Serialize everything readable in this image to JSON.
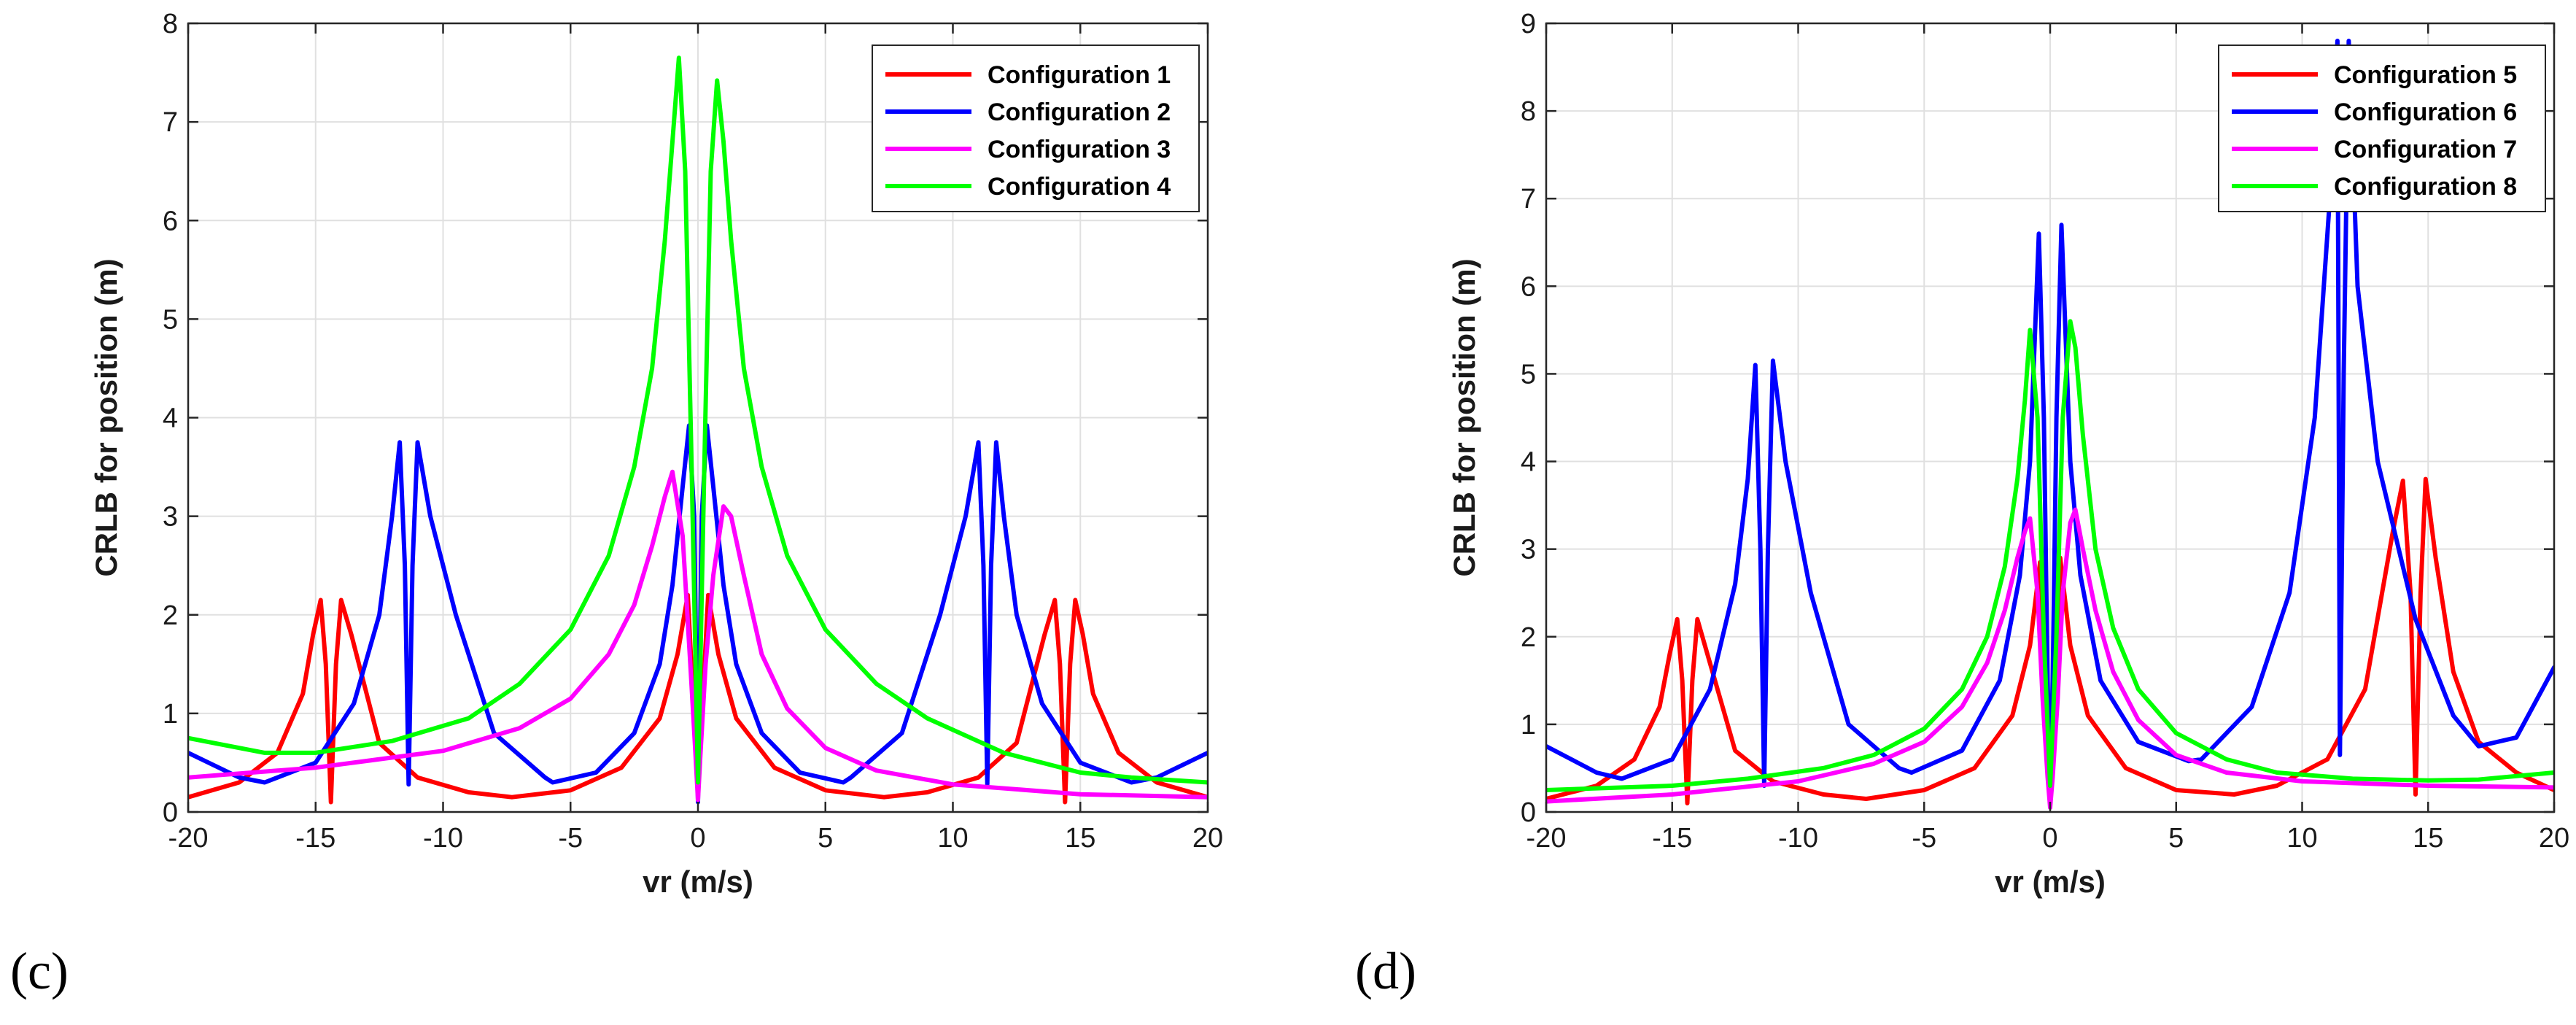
{
  "chart_data": [
    {
      "type": "line",
      "panel_label": "(c)",
      "xlabel": "vr (m/s)",
      "ylabel": "CRLB for position (m)",
      "xlim": [
        -20,
        20
      ],
      "ylim": [
        0,
        8
      ],
      "xticks": [
        -20,
        -15,
        -10,
        -5,
        0,
        5,
        10,
        15,
        20
      ],
      "yticks": [
        0,
        1,
        2,
        3,
        4,
        5,
        6,
        7,
        8
      ],
      "grid": true,
      "legend_position": "top-right",
      "series": [
        {
          "name": "Configuration 1",
          "color": "#ff0000",
          "x": [
            -20,
            -18,
            -16.5,
            -15.5,
            -15.1,
            -14.8,
            -14.6,
            -14.4,
            -14.2,
            -14.0,
            -13.6,
            -12.5,
            -11,
            -9,
            -7.3,
            -5,
            -3,
            -1.5,
            -0.8,
            -0.4,
            -0.2,
            0,
            0.2,
            0.4,
            0.8,
            1.5,
            3,
            5,
            7.3,
            9,
            11,
            12.5,
            13.6,
            14.0,
            14.2,
            14.4,
            14.6,
            14.8,
            15.1,
            15.5,
            16.5,
            18,
            20
          ],
          "values": [
            0.15,
            0.3,
            0.6,
            1.2,
            1.8,
            2.15,
            1.5,
            0.1,
            1.5,
            2.15,
            1.8,
            0.7,
            0.35,
            0.2,
            0.15,
            0.22,
            0.45,
            0.95,
            1.6,
            2.2,
            1.2,
            0.2,
            1.2,
            2.2,
            1.6,
            0.95,
            0.45,
            0.22,
            0.15,
            0.2,
            0.35,
            0.7,
            1.8,
            2.15,
            1.5,
            0.1,
            1.5,
            2.15,
            1.8,
            1.2,
            0.6,
            0.3,
            0.15
          ]
        },
        {
          "name": "Configuration 2",
          "color": "#0000ff",
          "x": [
            -20,
            -18,
            -17,
            -15,
            -13.5,
            -12.5,
            -12,
            -11.7,
            -11.5,
            -11.35,
            -11.2,
            -11.0,
            -10.5,
            -9.5,
            -8,
            -6,
            -5.7,
            -4,
            -2.5,
            -1.5,
            -1,
            -0.6,
            -0.35,
            -0.15,
            0,
            0.15,
            0.35,
            0.6,
            1,
            1.5,
            2.5,
            4,
            5.7,
            6,
            8,
            9.5,
            10.5,
            11.0,
            11.2,
            11.35,
            11.5,
            11.7,
            12,
            12.5,
            13.5,
            15,
            17,
            18,
            20
          ],
          "values": [
            0.6,
            0.35,
            0.3,
            0.5,
            1.1,
            2.0,
            3.0,
            3.75,
            2.5,
            0.28,
            2.5,
            3.75,
            3.0,
            2.0,
            0.8,
            0.35,
            0.3,
            0.4,
            0.8,
            1.5,
            2.3,
            3.3,
            3.92,
            3.0,
            0.1,
            3.0,
            3.92,
            3.3,
            2.3,
            1.5,
            0.8,
            0.4,
            0.3,
            0.35,
            0.8,
            2.0,
            3.0,
            3.75,
            2.5,
            0.28,
            2.5,
            3.75,
            3.0,
            2.0,
            1.1,
            0.5,
            0.3,
            0.35,
            0.6
          ]
        },
        {
          "name": "Configuration 3",
          "color": "#ff00ff",
          "x": [
            -20,
            -15,
            -10,
            -7,
            -5,
            -3.5,
            -2.5,
            -1.8,
            -1.3,
            -1.0,
            -0.6,
            -0.3,
            -0.1,
            0,
            0.1,
            0.3,
            0.6,
            1.0,
            1.3,
            1.8,
            2.5,
            3.5,
            5,
            7,
            10,
            15,
            20
          ],
          "values": [
            0.35,
            0.45,
            0.62,
            0.85,
            1.15,
            1.6,
            2.1,
            2.7,
            3.2,
            3.45,
            2.8,
            1.5,
            0.6,
            0.12,
            0.6,
            1.5,
            2.4,
            3.1,
            3.0,
            2.4,
            1.6,
            1.05,
            0.65,
            0.42,
            0.28,
            0.18,
            0.15
          ]
        },
        {
          "name": "Configuration 4",
          "color": "#00ff00",
          "x": [
            -20,
            -17,
            -15,
            -12,
            -9,
            -7,
            -5,
            -3.5,
            -2.5,
            -1.8,
            -1.3,
            -1.0,
            -0.75,
            -0.5,
            -0.25,
            0,
            0.25,
            0.5,
            0.75,
            1.0,
            1.3,
            1.8,
            2.5,
            3.5,
            5,
            7,
            9,
            12,
            15,
            17,
            20
          ],
          "values": [
            0.75,
            0.6,
            0.6,
            0.72,
            0.95,
            1.3,
            1.85,
            2.6,
            3.5,
            4.5,
            5.8,
            6.8,
            7.65,
            6.5,
            3.5,
            0.3,
            3.5,
            6.5,
            7.42,
            6.8,
            5.8,
            4.5,
            3.5,
            2.6,
            1.85,
            1.3,
            0.95,
            0.6,
            0.4,
            0.35,
            0.3
          ]
        }
      ]
    },
    {
      "type": "line",
      "panel_label": "(d)",
      "xlabel": "vr (m/s)",
      "ylabel": "CRLB for position (m)",
      "xlim": [
        -20,
        20
      ],
      "ylim": [
        0,
        9
      ],
      "xticks": [
        -20,
        -15,
        -10,
        -5,
        0,
        5,
        10,
        15,
        20
      ],
      "yticks": [
        0,
        1,
        2,
        3,
        4,
        5,
        6,
        7,
        8,
        9
      ],
      "grid": true,
      "legend_position": "top-right",
      "series": [
        {
          "name": "Configuration 5",
          "color": "#ff0000",
          "x": [
            -20,
            -18,
            -16.5,
            -15.5,
            -15.1,
            -14.8,
            -14.6,
            -14.4,
            -14.2,
            -14.0,
            -13.6,
            -12.5,
            -11,
            -9,
            -7.3,
            -5,
            -3,
            -1.5,
            -0.8,
            -0.4,
            -0.2,
            0,
            0.2,
            0.4,
            0.8,
            1.5,
            3,
            5,
            7.3,
            9,
            11,
            12.5,
            13.6,
            14.0,
            14.3,
            14.5,
            14.7,
            14.9,
            15.3,
            16,
            17,
            18.5,
            20
          ],
          "values": [
            0.15,
            0.3,
            0.6,
            1.2,
            1.8,
            2.2,
            1.5,
            0.1,
            1.5,
            2.2,
            1.8,
            0.7,
            0.35,
            0.2,
            0.15,
            0.25,
            0.5,
            1.1,
            1.9,
            2.85,
            1.5,
            0.2,
            1.5,
            2.9,
            1.9,
            1.1,
            0.5,
            0.25,
            0.2,
            0.3,
            0.6,
            1.4,
            3.2,
            3.78,
            2.5,
            0.2,
            2.5,
            3.8,
            2.9,
            1.6,
            0.8,
            0.45,
            0.25
          ]
        },
        {
          "name": "Configuration 6",
          "color": "#0000ff",
          "x": [
            -20,
            -18,
            -17,
            -15,
            -13.5,
            -12.5,
            -12,
            -11.7,
            -11.5,
            -11.35,
            -11.2,
            -11.0,
            -10.5,
            -9.5,
            -8,
            -6,
            -5.5,
            -3.5,
            -2,
            -1.2,
            -0.8,
            -0.45,
            -0.25,
            -0.1,
            0,
            0.1,
            0.25,
            0.45,
            0.8,
            1.2,
            2,
            3.5,
            5.5,
            6,
            8,
            9.5,
            10.5,
            11.1,
            11.4,
            11.5,
            11.65,
            11.85,
            12.2,
            13,
            14.5,
            16,
            17,
            18.5,
            20
          ],
          "values": [
            0.75,
            0.45,
            0.38,
            0.6,
            1.4,
            2.6,
            3.8,
            5.1,
            3.0,
            0.3,
            3.0,
            5.15,
            4.0,
            2.5,
            1.0,
            0.5,
            0.45,
            0.7,
            1.5,
            2.7,
            4.0,
            6.6,
            4.5,
            1.5,
            0.35,
            1.5,
            4.5,
            6.7,
            4.0,
            2.7,
            1.5,
            0.8,
            0.58,
            0.6,
            1.2,
            2.5,
            4.5,
            7.0,
            8.8,
            0.65,
            5.0,
            8.8,
            6.0,
            4.0,
            2.2,
            1.1,
            0.75,
            0.85,
            1.65
          ]
        },
        {
          "name": "Configuration 7",
          "color": "#ff00ff",
          "x": [
            -20,
            -15,
            -10,
            -7,
            -5,
            -3.5,
            -2.5,
            -1.8,
            -1.3,
            -1.0,
            -0.8,
            -0.5,
            -0.3,
            -0.1,
            0,
            0.1,
            0.3,
            0.5,
            0.8,
            1.0,
            1.3,
            1.8,
            2.5,
            3.5,
            5,
            7,
            10,
            15,
            20
          ],
          "values": [
            0.12,
            0.2,
            0.35,
            0.55,
            0.8,
            1.2,
            1.7,
            2.3,
            2.9,
            3.2,
            3.35,
            2.5,
            1.3,
            0.4,
            0.05,
            0.4,
            1.3,
            2.5,
            3.3,
            3.45,
            3.0,
            2.3,
            1.6,
            1.05,
            0.65,
            0.45,
            0.35,
            0.3,
            0.28
          ]
        },
        {
          "name": "Configuration 8",
          "color": "#00ff00",
          "x": [
            -20,
            -15,
            -12,
            -9,
            -7,
            -5,
            -3.5,
            -2.5,
            -1.8,
            -1.3,
            -1.0,
            -0.8,
            -0.5,
            -0.25,
            0,
            0.25,
            0.5,
            0.8,
            1.0,
            1.3,
            1.8,
            2.5,
            3.5,
            5,
            7,
            9,
            12,
            15,
            17,
            20
          ],
          "values": [
            0.25,
            0.3,
            0.38,
            0.5,
            0.65,
            0.95,
            1.4,
            2.0,
            2.8,
            3.8,
            4.7,
            5.5,
            4.5,
            2.0,
            0.3,
            2.0,
            4.5,
            5.6,
            5.3,
            4.3,
            3.0,
            2.1,
            1.4,
            0.9,
            0.6,
            0.45,
            0.38,
            0.36,
            0.37,
            0.45
          ]
        }
      ]
    }
  ]
}
